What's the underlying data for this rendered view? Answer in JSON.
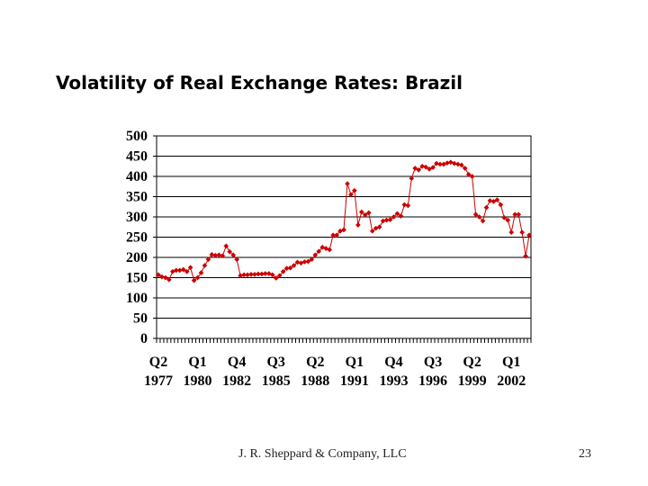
{
  "slide": {
    "title": "Volatility of Real Exchange Rates: Brazil",
    "footer": "J. R. Sheppard & Company, LLC",
    "page_number": "23"
  },
  "chart_data": {
    "type": "line",
    "title": "",
    "xlabel": "",
    "ylabel": "",
    "ylim": [
      0,
      500
    ],
    "y_ticks": [
      0,
      50,
      100,
      150,
      200,
      250,
      300,
      350,
      400,
      450,
      500
    ],
    "x_tick_labels": [
      {
        "quarter": "Q2",
        "year": "1977"
      },
      {
        "quarter": "Q1",
        "year": "1980"
      },
      {
        "quarter": "Q4",
        "year": "1982"
      },
      {
        "quarter": "Q3",
        "year": "1985"
      },
      {
        "quarter": "Q2",
        "year": "1988"
      },
      {
        "quarter": "Q1",
        "year": "1991"
      },
      {
        "quarter": "Q4",
        "year": "1993"
      },
      {
        "quarter": "Q3",
        "year": "1996"
      },
      {
        "quarter": "Q2",
        "year": "1999"
      },
      {
        "quarter": "Q1",
        "year": "2002"
      }
    ],
    "grid": {
      "horizontal": true,
      "vertical": false
    },
    "legend": "none",
    "series_color": "#cc0000",
    "marker": "diamond",
    "start_period": "1977 Q2",
    "interval": "quarterly",
    "values": [
      157,
      152,
      150,
      145,
      165,
      168,
      168,
      170,
      165,
      175,
      143,
      150,
      162,
      180,
      195,
      207,
      205,
      206,
      204,
      228,
      214,
      206,
      195,
      155,
      157,
      157,
      158,
      158,
      159,
      159,
      160,
      160,
      157,
      149,
      155,
      165,
      173,
      174,
      180,
      188,
      186,
      189,
      190,
      195,
      206,
      215,
      225,
      222,
      219,
      255,
      255,
      265,
      268,
      382,
      355,
      365,
      280,
      312,
      305,
      310,
      265,
      272,
      275,
      290,
      292,
      293,
      300,
      308,
      302,
      330,
      328,
      395,
      420,
      416,
      425,
      423,
      418,
      422,
      432,
      430,
      430,
      433,
      435,
      432,
      430,
      428,
      420,
      405,
      400,
      306,
      300,
      290,
      323,
      340,
      338,
      342,
      330,
      298,
      292,
      262,
      306,
      306,
      262,
      203,
      255
    ]
  }
}
